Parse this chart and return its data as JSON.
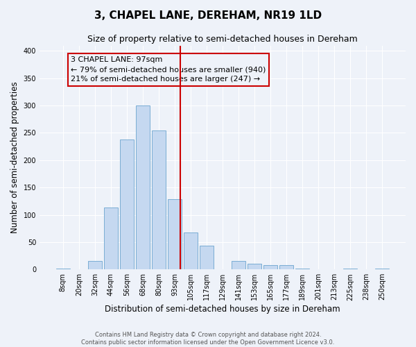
{
  "title": "3, CHAPEL LANE, DEREHAM, NR19 1LD",
  "subtitle": "Size of property relative to semi-detached houses in Dereham",
  "xlabel": "Distribution of semi-detached houses by size in Dereham",
  "ylabel": "Number of semi-detached properties",
  "bar_labels": [
    "8sqm",
    "20sqm",
    "32sqm",
    "44sqm",
    "56sqm",
    "68sqm",
    "80sqm",
    "93sqm",
    "105sqm",
    "117sqm",
    "129sqm",
    "141sqm",
    "153sqm",
    "165sqm",
    "177sqm",
    "189sqm",
    "201sqm",
    "213sqm",
    "225sqm",
    "238sqm",
    "250sqm"
  ],
  "bar_values": [
    2,
    0,
    15,
    113,
    238,
    300,
    255,
    128,
    68,
    44,
    0,
    16,
    10,
    8,
    8,
    2,
    0,
    0,
    2,
    0,
    2
  ],
  "bar_color": "#c5d8f0",
  "bar_edge_color": "#7aadd4",
  "annotation_text_line1": "3 CHAPEL LANE: 97sqm",
  "annotation_text_line2": "← 79% of semi-detached houses are smaller (940)",
  "annotation_text_line3": "21% of semi-detached houses are larger (247) →",
  "box_edge_color": "#cc0000",
  "vline_color": "#cc0000",
  "ylim": [
    0,
    410
  ],
  "yticks": [
    0,
    50,
    100,
    150,
    200,
    250,
    300,
    350,
    400
  ],
  "footer_line1": "Contains HM Land Registry data © Crown copyright and database right 2024.",
  "footer_line2": "Contains public sector information licensed under the Open Government Licence v3.0.",
  "bg_color": "#eef2f9",
  "grid_color": "#ffffff",
  "title_fontsize": 11,
  "subtitle_fontsize": 9,
  "axis_label_fontsize": 8.5,
  "tick_fontsize": 7,
  "annotation_fontsize": 8,
  "footer_fontsize": 6
}
